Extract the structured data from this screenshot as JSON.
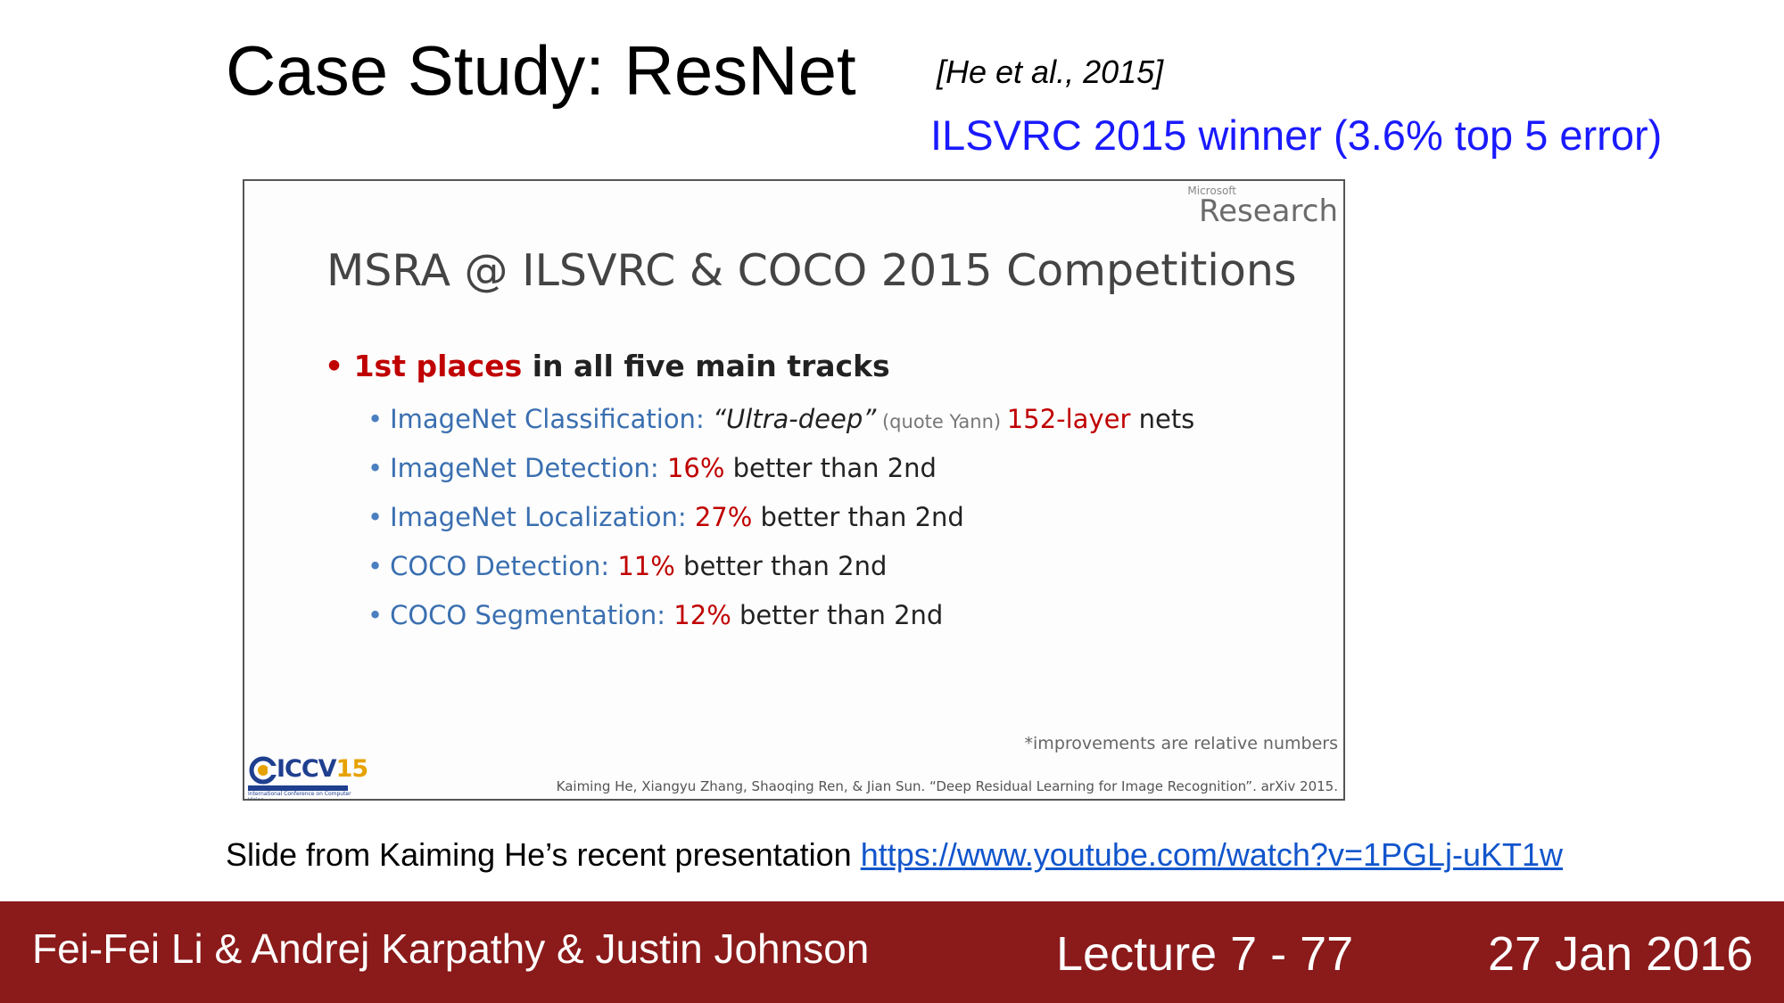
{
  "header": {
    "title": "Case Study: ResNet",
    "citation": "[He et al., 2015]",
    "subtitle": "ILSVRC 2015 winner (3.6% top 5 error)"
  },
  "slide": {
    "ms_small": "Microsoft",
    "ms_research": "Research",
    "title": "MSRA @ ILSVRC & COCO 2015 Competitions",
    "main_bullet": {
      "red": "1st places",
      "rest": " in all five main tracks"
    },
    "items": [
      {
        "blue": "ImageNet Classification: ",
        "ital": "“Ultra-deep”",
        "grey": " (quote Yann) ",
        "red": "152-layer",
        "rest": " nets"
      },
      {
        "blue": "ImageNet Detection: ",
        "red": "16%",
        "rest": " better than 2nd"
      },
      {
        "blue": "ImageNet Localization: ",
        "red": "27%",
        "rest": " better than 2nd"
      },
      {
        "blue": "COCO Detection: ",
        "red": "11%",
        "rest": " better than 2nd"
      },
      {
        "blue": "COCO Segmentation: ",
        "red": "12%",
        "rest": " better than 2nd"
      }
    ],
    "footnote": "*improvements are relative numbers",
    "credits": "Kaiming He, Xiangyu Zhang, Shaoqing Ren, & Jian Sun. “Deep Residual Learning for Image Recognition”. arXiv 2015.",
    "logo": {
      "text_a": "ICCV",
      "text_b": "15",
      "sub": "International Conference on Computer Vision"
    }
  },
  "caption": {
    "text": "Slide from Kaiming He’s recent presentation ",
    "link": "https://www.youtube.com/watch?v=1PGLj-uKT1w"
  },
  "footer": {
    "authors": "Fei-Fei Li & Andrej Karpathy & Justin Johnson",
    "lecture": "Lecture 7 - 77",
    "date": "27 Jan 2016"
  },
  "colors": {
    "footer_bg": "#8b1a1a",
    "subtitle": "#1a1aff",
    "accent_red": "#c00000",
    "accent_blue": "#3a6fb0"
  }
}
